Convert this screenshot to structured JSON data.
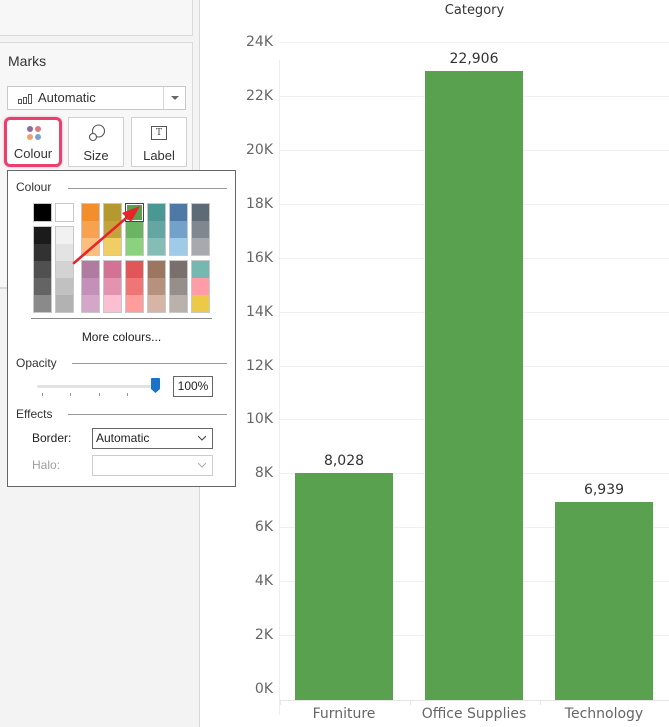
{
  "sidebar": {
    "marks": {
      "title": "Marks",
      "mark_type": "Automatic",
      "buttons": [
        {
          "label": "Colour",
          "icon": "colour-dots-icon",
          "active": true
        },
        {
          "label": "Size",
          "icon": "size-circles-icon"
        },
        {
          "label": "Label",
          "icon": "text-label-icon"
        }
      ],
      "colour_dots": [
        "#8e6c9e",
        "#e8767d",
        "#f0a172",
        "#7ba3d0"
      ]
    }
  },
  "colour_popup": {
    "colour_title": "Colour",
    "selected_colour": "#59a14f",
    "singles": [
      {
        "color": "#000000"
      },
      {
        "color": "#ffffff"
      }
    ],
    "grey_columns": [
      [
        "#1b1b1b",
        "#323232",
        "#505050",
        "#646464",
        "#8a8a8a"
      ],
      [
        "#f1f1f1",
        "#e3e3e3",
        "#d3d3d3",
        "#c1c1c1",
        "#b2b2b2"
      ]
    ],
    "top_columns": [
      [
        "#f28e2b",
        "#f7a24f",
        "#ffbe7d"
      ],
      [
        "#b6992d",
        "#c4a43a",
        "#f1ce63"
      ],
      [
        "#59a14f",
        "#6bb463",
        "#8cd17d"
      ],
      [
        "#499894",
        "#64a7a2",
        "#86bcb6"
      ],
      [
        "#4e79a7",
        "#72a1c9",
        "#a0cbe8"
      ],
      [
        "#5e6a76",
        "#7f8790",
        "#a6aaae"
      ]
    ],
    "bottom_columns": [
      [
        "#b07aa1",
        "#c48fb9",
        "#d4a6c8"
      ],
      [
        "#d37295",
        "#e393b0",
        "#fabfd2"
      ],
      [
        "#e15759",
        "#ef7674",
        "#ff9d9a"
      ],
      [
        "#9d7660",
        "#b6917e",
        "#d7b5a6"
      ],
      [
        "#79706e",
        "#968e8b",
        "#bab0ac"
      ],
      [
        "#74b8b1",
        "#ff9da7",
        "#edc948"
      ]
    ],
    "more_colours": "More colours...",
    "opacity_title": "Opacity",
    "opacity_value": "100%",
    "effects_title": "Effects",
    "border_label": "Border:",
    "border_value": "Automatic",
    "halo_label": "Halo:",
    "halo_value": ""
  },
  "annotation": {
    "arrow_color": "#e8232b"
  },
  "chart": {
    "header": "Category",
    "bar_color": "#59a14f",
    "y_ticks": [
      "0K",
      "2K",
      "4K",
      "6K",
      "8K",
      "10K",
      "12K",
      "14K",
      "16K",
      "18K",
      "20K",
      "22K",
      "24K"
    ],
    "bars": [
      {
        "category": "Furniture",
        "value": 8028,
        "label": "8,028"
      },
      {
        "category": "Office Supplies",
        "value": 22906,
        "label": "22,906"
      },
      {
        "category": "Technology",
        "value": 6939,
        "label": "6,939"
      }
    ]
  },
  "chart_data": {
    "type": "bar",
    "title": "Category",
    "categories": [
      "Furniture",
      "Office Supplies",
      "Technology"
    ],
    "values": [
      8028,
      22906,
      6939
    ],
    "data_labels": [
      "8,028",
      "22,906",
      "6,939"
    ],
    "xlabel": "",
    "ylabel": "",
    "ylim": [
      0,
      24000
    ],
    "y_tick_labels": [
      "0K",
      "2K",
      "4K",
      "6K",
      "8K",
      "10K",
      "12K",
      "14K",
      "16K",
      "18K",
      "20K",
      "22K",
      "24K"
    ],
    "grid": true,
    "legend": null,
    "color": "#59a14f"
  }
}
